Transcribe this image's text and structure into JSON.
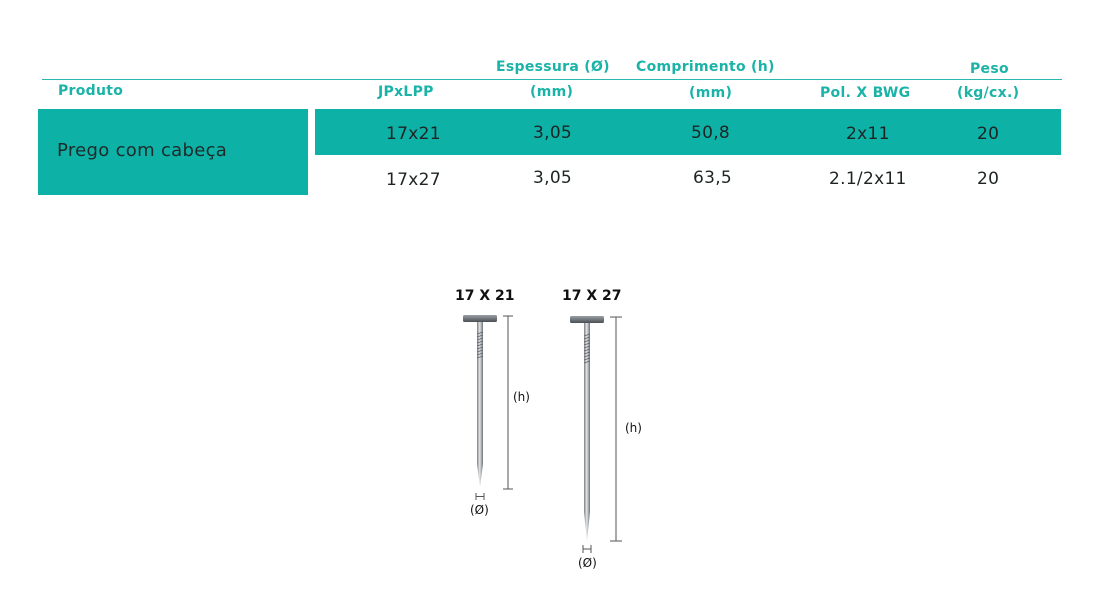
{
  "table": {
    "headers": {
      "produto": "Produto",
      "jpxlpp": "JPxLPP",
      "espessura_1": "Espessura (Ø)",
      "espessura_2": "(mm)",
      "comprimento_1": "Comprimento (h)",
      "comprimento_2": "(mm)",
      "polbwg": "Pol. X BWG",
      "peso_1": "Peso",
      "peso_2": "(kg/cx.)"
    },
    "product": "Prego com cabeça",
    "rows": [
      {
        "jpxlpp": "17x21",
        "espessura": "3,05",
        "comprimento": "50,8",
        "polbwg": "2x11",
        "peso": "20"
      },
      {
        "jpxlpp": "17x27",
        "espessura": "3,05",
        "comprimento": "63,5",
        "polbwg": "2.1/2x11",
        "peso": "20"
      }
    ]
  },
  "nails": [
    {
      "title": "17 X 21",
      "height_label": "(h)",
      "diameter_label": "(Ø)"
    },
    {
      "title": "17 X 27",
      "height_label": "(h)",
      "diameter_label": "(Ø)"
    }
  ],
  "colors": {
    "accent": "#0db1a6",
    "header_text": "#1bb3a8"
  }
}
